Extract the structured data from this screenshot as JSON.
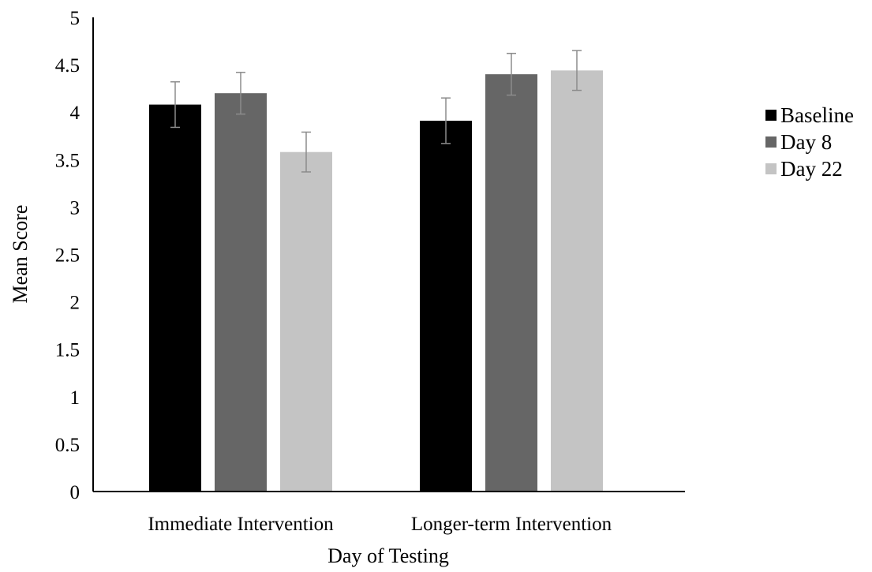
{
  "chart_data": {
    "type": "bar",
    "title": "",
    "xlabel": "Day of Testing",
    "ylabel": "Mean Score",
    "categories": [
      "Immediate Intervention",
      "Longer-term Intervention"
    ],
    "series": [
      {
        "name": "Baseline",
        "color": "#000000",
        "values": [
          4.08,
          3.91
        ],
        "error": [
          0.24,
          0.24
        ]
      },
      {
        "name": "Day 8",
        "color": "#666666",
        "values": [
          4.2,
          4.4
        ],
        "error": [
          0.22,
          0.22
        ]
      },
      {
        "name": "Day 22",
        "color": "#c4c4c4",
        "values": [
          3.58,
          4.44
        ],
        "error": [
          0.21,
          0.21
        ]
      }
    ],
    "ylim": [
      0,
      5
    ],
    "yticks": [
      0,
      0.5,
      1,
      1.5,
      2,
      2.5,
      3,
      3.5,
      4,
      4.5,
      5
    ],
    "ytick_labels": [
      "0",
      "0.5",
      "1",
      "1.5",
      "2",
      "2.5",
      "3",
      "3.5",
      "4",
      "4.5",
      "5"
    ],
    "grid": false,
    "legend_position": "right",
    "error_bar_color": "#8c8c8c",
    "axis_color": "#000000"
  }
}
